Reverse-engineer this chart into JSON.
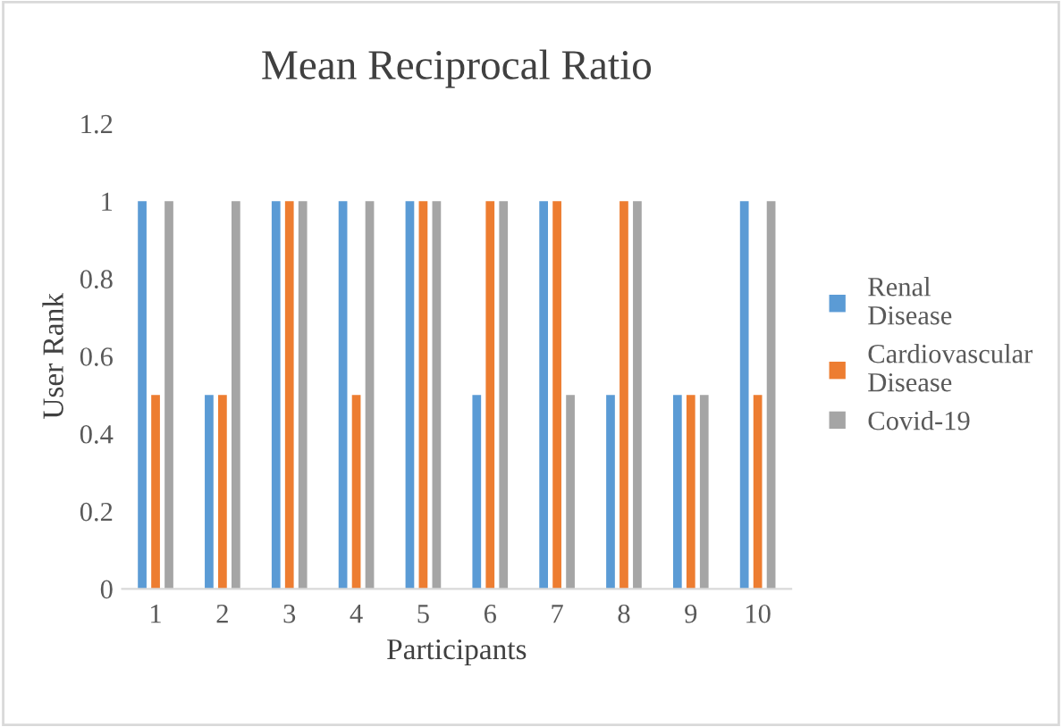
{
  "chart_data": {
    "type": "bar",
    "title": "Mean Reciprocal Ratio",
    "xlabel": "Participants",
    "ylabel": "User Rank",
    "categories": [
      "1",
      "2",
      "3",
      "4",
      "5",
      "6",
      "7",
      "8",
      "9",
      "10"
    ],
    "series": [
      {
        "name": "Renal Disease",
        "color": "#5b9bd5",
        "values": [
          1,
          0.5,
          1,
          1,
          1,
          0.5,
          1,
          0.5,
          0.5,
          1
        ]
      },
      {
        "name": "Cardiovascular Disease",
        "color": "#ed7d31",
        "values": [
          0.5,
          0.5,
          1,
          0.5,
          1,
          1,
          1,
          1,
          0.5,
          0.5
        ]
      },
      {
        "name": "Covid-19",
        "color": "#a5a5a5",
        "values": [
          1,
          1,
          1,
          1,
          1,
          1,
          0.5,
          1,
          0.5,
          1
        ]
      }
    ],
    "ylim": [
      0,
      1.2
    ],
    "yticks": [
      0,
      0.2,
      0.4,
      0.6,
      0.8,
      1,
      1.2
    ],
    "legend": "right"
  }
}
